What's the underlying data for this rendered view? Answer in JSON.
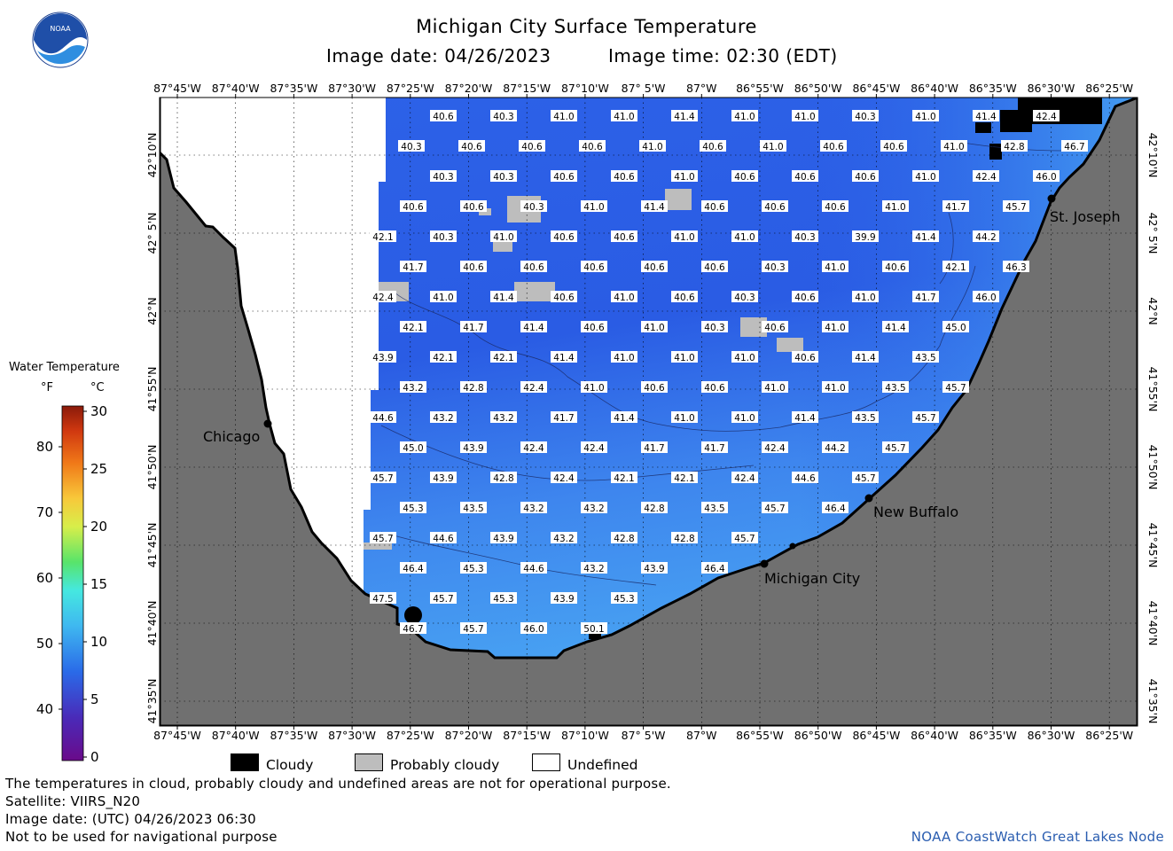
{
  "title": "Michigan City Surface Temperature",
  "image_date_label": "Image date: 04/26/2023",
  "image_time_label": "Image time: 02:30 (EDT)",
  "logo_text": "NOAA",
  "lon_labels": [
    "87°45'W",
    "87°40'W",
    "87°35'W",
    "87°30'W",
    "87°25'W",
    "87°20'W",
    "87°15'W",
    "87°10'W",
    "87° 5'W",
    "87°W",
    "86°55'W",
    "86°50'W",
    "86°45'W",
    "86°40'W",
    "86°35'W",
    "86°30'W",
    "86°25'W"
  ],
  "lat_labels": [
    "42°10'N",
    "42° 5'N",
    "42°N",
    "41°55'N",
    "41°50'N",
    "41°45'N",
    "41°40'N",
    "41°35'N"
  ],
  "cities": [
    {
      "name": "Chicago"
    },
    {
      "name": "St. Joseph"
    },
    {
      "name": "New Buffalo"
    },
    {
      "name": "Michigan City"
    }
  ],
  "legend": {
    "title": "Water Temperature",
    "unit_f": "°F",
    "unit_c": "°C",
    "f_ticks": [
      "80",
      "70",
      "60",
      "50",
      "40"
    ],
    "c_ticks": [
      "30",
      "25",
      "20",
      "15",
      "10",
      "5",
      "0"
    ]
  },
  "key": {
    "cloudy": "Cloudy",
    "probably_cloudy": "Probably cloudy",
    "undefined": "Undefined"
  },
  "notes": [
    "The temperatures in cloud, probably cloudy and undefined areas are not for operational purpose.",
    "Satellite: VIIRS_N20",
    "Image date: (UTC) 04/26/2023  06:30",
    "Not to be used for navigational purpose"
  ],
  "credit": "NOAA CoastWatch Great Lakes Node",
  "colors": {
    "land": "#707070",
    "undefined": "#ffffff",
    "cloudy": "#000000",
    "probably_cloudy": "#bdbdbd",
    "water_cold": "#2b5de6",
    "water_warm": "#4aa6f2"
  },
  "temps": [
    [
      "40.6",
      "40.3",
      "41.0",
      "41.0",
      "41.4",
      "41.0",
      "41.0",
      "40.3",
      "41.0",
      "41.4",
      "42.4"
    ],
    [
      "40.3",
      "40.6",
      "40.6",
      "40.6",
      "41.0",
      "40.6",
      "41.0",
      "40.6",
      "40.6",
      "41.0",
      "42.8",
      "46.7"
    ],
    [
      "40.3",
      "40.3",
      "40.6",
      "40.6",
      "41.0",
      "40.6",
      "40.6",
      "40.6",
      "41.0",
      "42.4",
      "46.0"
    ],
    [
      "40.6",
      "40.6",
      "40.3",
      "41.0",
      "41.4",
      "40.6",
      "40.6",
      "40.6",
      "41.0",
      "41.7",
      "45.7"
    ],
    [
      "42.1",
      "40.3",
      "41.0",
      "40.6",
      "40.6",
      "41.0",
      "41.0",
      "40.3",
      "39.9",
      "41.4",
      "44.2"
    ],
    [
      "41.7",
      "40.6",
      "40.6",
      "40.6",
      "40.6",
      "40.6",
      "40.3",
      "41.0",
      "40.6",
      "42.1",
      "46.3"
    ],
    [
      "42.4",
      "41.0",
      "41.4",
      "40.6",
      "41.0",
      "40.6",
      "40.3",
      "40.6",
      "41.0",
      "41.7",
      "46.0"
    ],
    [
      "42.1",
      "41.7",
      "41.4",
      "40.6",
      "41.0",
      "40.3",
      "40.6",
      "41.0",
      "41.4",
      "45.0"
    ],
    [
      "43.9",
      "42.1",
      "42.1",
      "41.4",
      "41.0",
      "41.0",
      "41.0",
      "40.6",
      "41.4",
      "43.5"
    ],
    [
      "43.2",
      "42.8",
      "42.4",
      "41.0",
      "40.6",
      "40.6",
      "41.0",
      "41.0",
      "43.5",
      "45.7"
    ],
    [
      "44.6",
      "43.2",
      "43.2",
      "41.7",
      "41.4",
      "41.0",
      "41.0",
      "41.4",
      "43.5",
      "45.7"
    ],
    [
      "45.0",
      "43.9",
      "42.4",
      "42.4",
      "41.7",
      "41.7",
      "42.4",
      "44.2",
      "45.7"
    ],
    [
      "45.7",
      "43.9",
      "42.8",
      "42.4",
      "42.1",
      "42.1",
      "42.4",
      "44.6",
      "45.7"
    ],
    [
      "45.3",
      "43.5",
      "43.2",
      "43.2",
      "42.8",
      "43.5",
      "45.7",
      "46.4"
    ],
    [
      "45.7",
      "44.6",
      "43.9",
      "43.2",
      "42.8",
      "42.8",
      "45.7"
    ],
    [
      "46.4",
      "45.3",
      "44.6",
      "43.2",
      "43.9",
      "46.4"
    ],
    [
      "47.5",
      "45.7",
      "45.3",
      "43.9",
      "45.3"
    ],
    [
      "46.7",
      "45.7",
      "46.0",
      "50.1"
    ]
  ]
}
